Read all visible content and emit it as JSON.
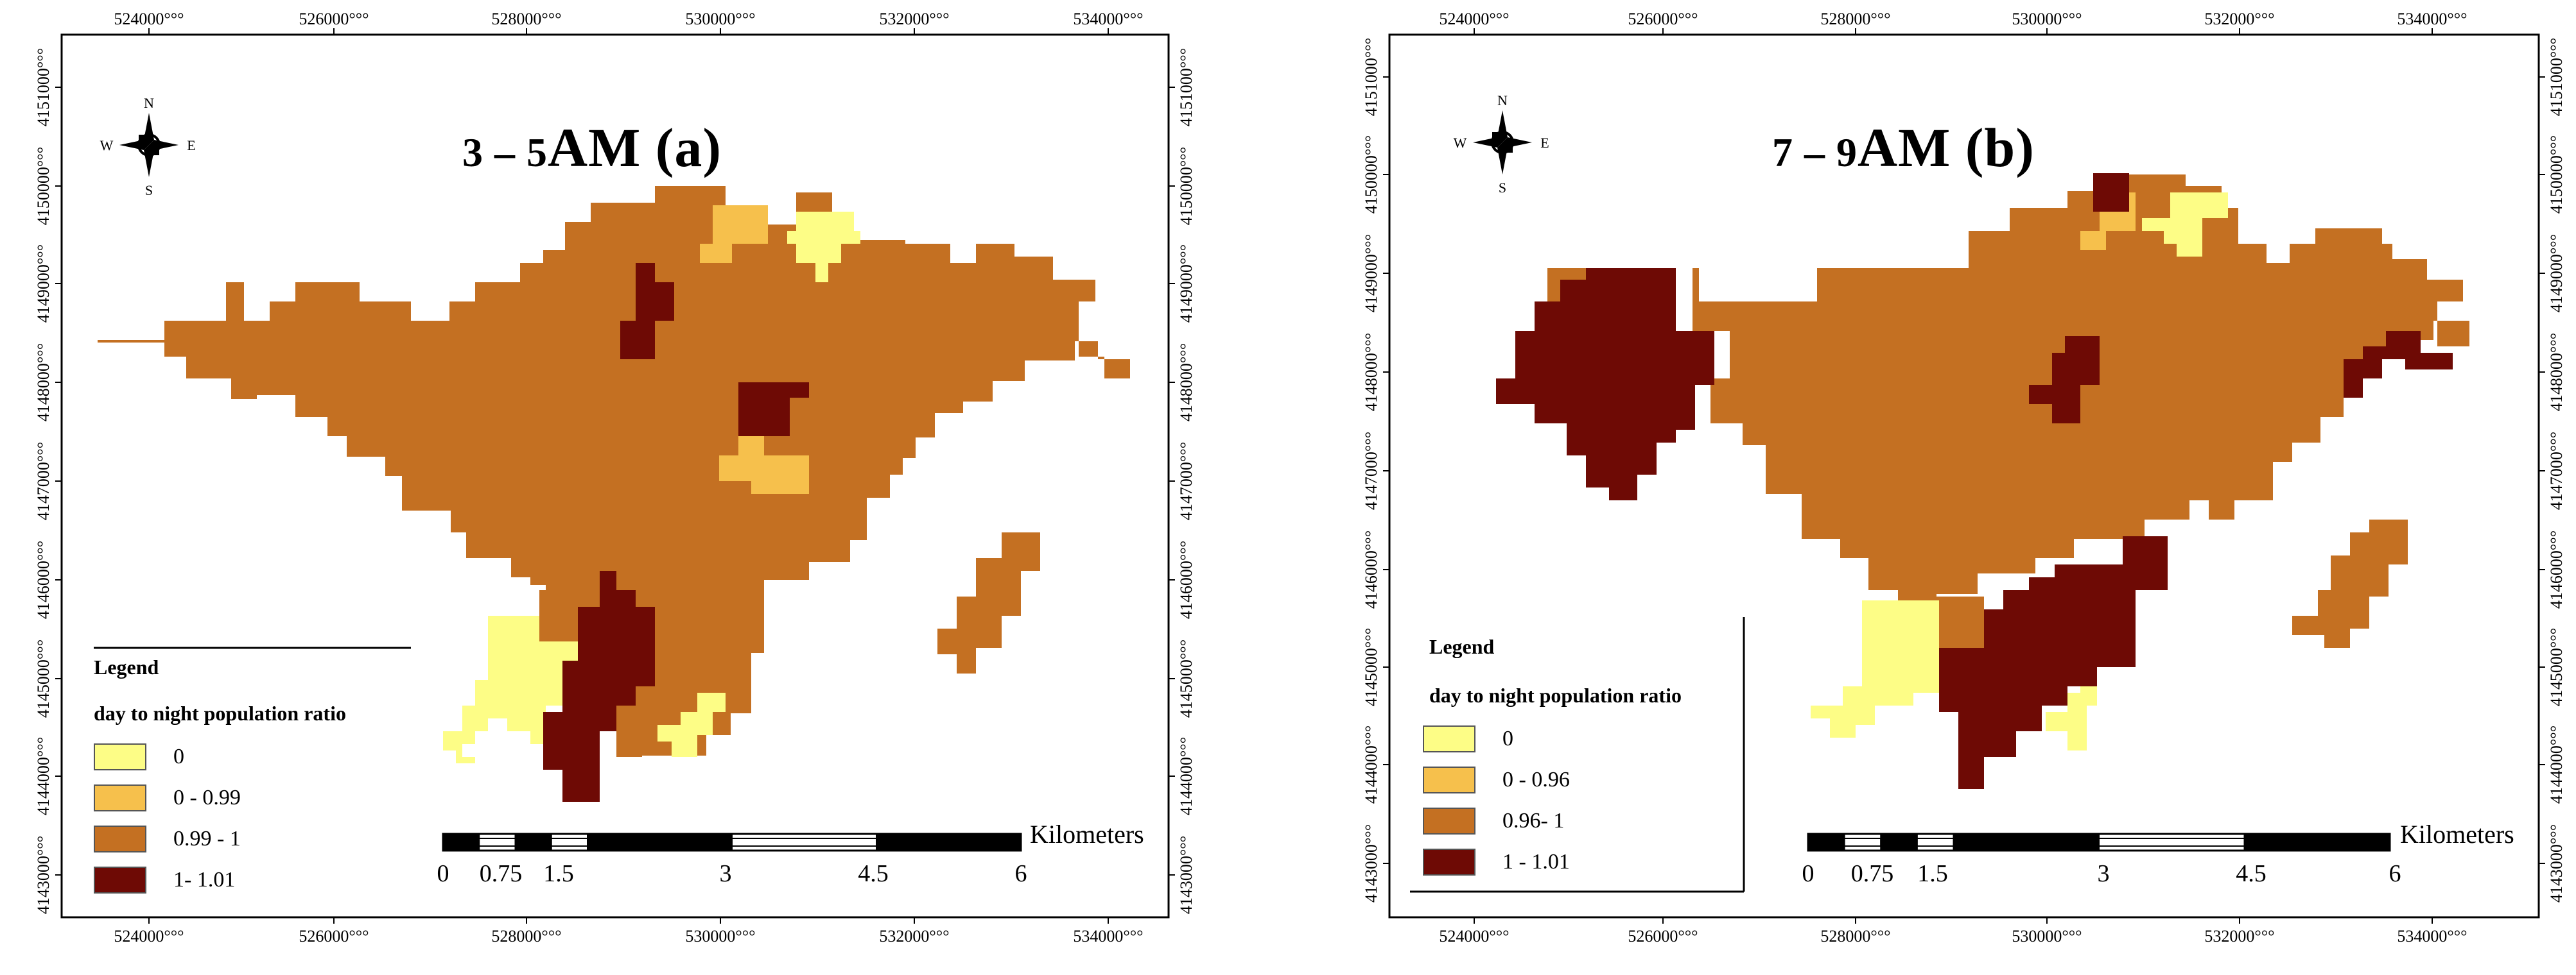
{
  "figure": {
    "panels": [
      {
        "title_prefix": "3 – 5",
        "title_suffix": "AM (a)",
        "x_ticks": [
          "524000",
          "526000",
          "528000",
          "530000",
          "532000",
          "534000"
        ],
        "y_ticks": [
          "4151000",
          "4150000",
          "4149000",
          "4148000",
          "4147000",
          "4146000",
          "4145000",
          "4144000",
          "4143000"
        ],
        "tick_suffix": "°°°",
        "compass": {
          "n": "N",
          "s": "S",
          "e": "E",
          "w": "W"
        },
        "legend": {
          "title": "Legend",
          "subtitle": "day to night population ratio",
          "classes": [
            {
              "label": "0",
              "color": "#fdfd86"
            },
            {
              "label": "0 - 0.99",
              "color": "#f6c04c"
            },
            {
              "label": "0.99 - 1",
              "color": "#c47022"
            },
            {
              "label": "1- 1.01",
              "color": "#6e0a05"
            }
          ]
        },
        "scalebar": {
          "labels": [
            "0",
            "0.75",
            "1.5",
            "3",
            "4.5",
            "6"
          ],
          "unit": "Kilometers"
        }
      },
      {
        "title_prefix": "7 – 9",
        "title_suffix": "AM (b)",
        "x_ticks": [
          "524000",
          "526000",
          "528000",
          "530000",
          "532000",
          "534000"
        ],
        "y_ticks": [
          "4151000",
          "4150000",
          "4149000",
          "4148000",
          "4147000",
          "4146000",
          "4145000",
          "4144000",
          "4143000"
        ],
        "tick_suffix": "°°°",
        "compass": {
          "n": "N",
          "s": "S",
          "e": "E",
          "w": "W"
        },
        "legend": {
          "title": "Legend",
          "subtitle": "day to night population ratio",
          "classes": [
            {
              "label": "0",
              "color": "#fdfd86"
            },
            {
              "label": "0 - 0.96",
              "color": "#f6c04c"
            },
            {
              "label": "0.96- 1",
              "color": "#c47022"
            },
            {
              "label": "1 - 1.01",
              "color": "#6e0a05"
            }
          ]
        },
        "scalebar": {
          "labels": [
            "0",
            "0.75",
            "1.5",
            "3",
            "4.5",
            "6"
          ],
          "unit": "Kilometers"
        }
      }
    ]
  }
}
